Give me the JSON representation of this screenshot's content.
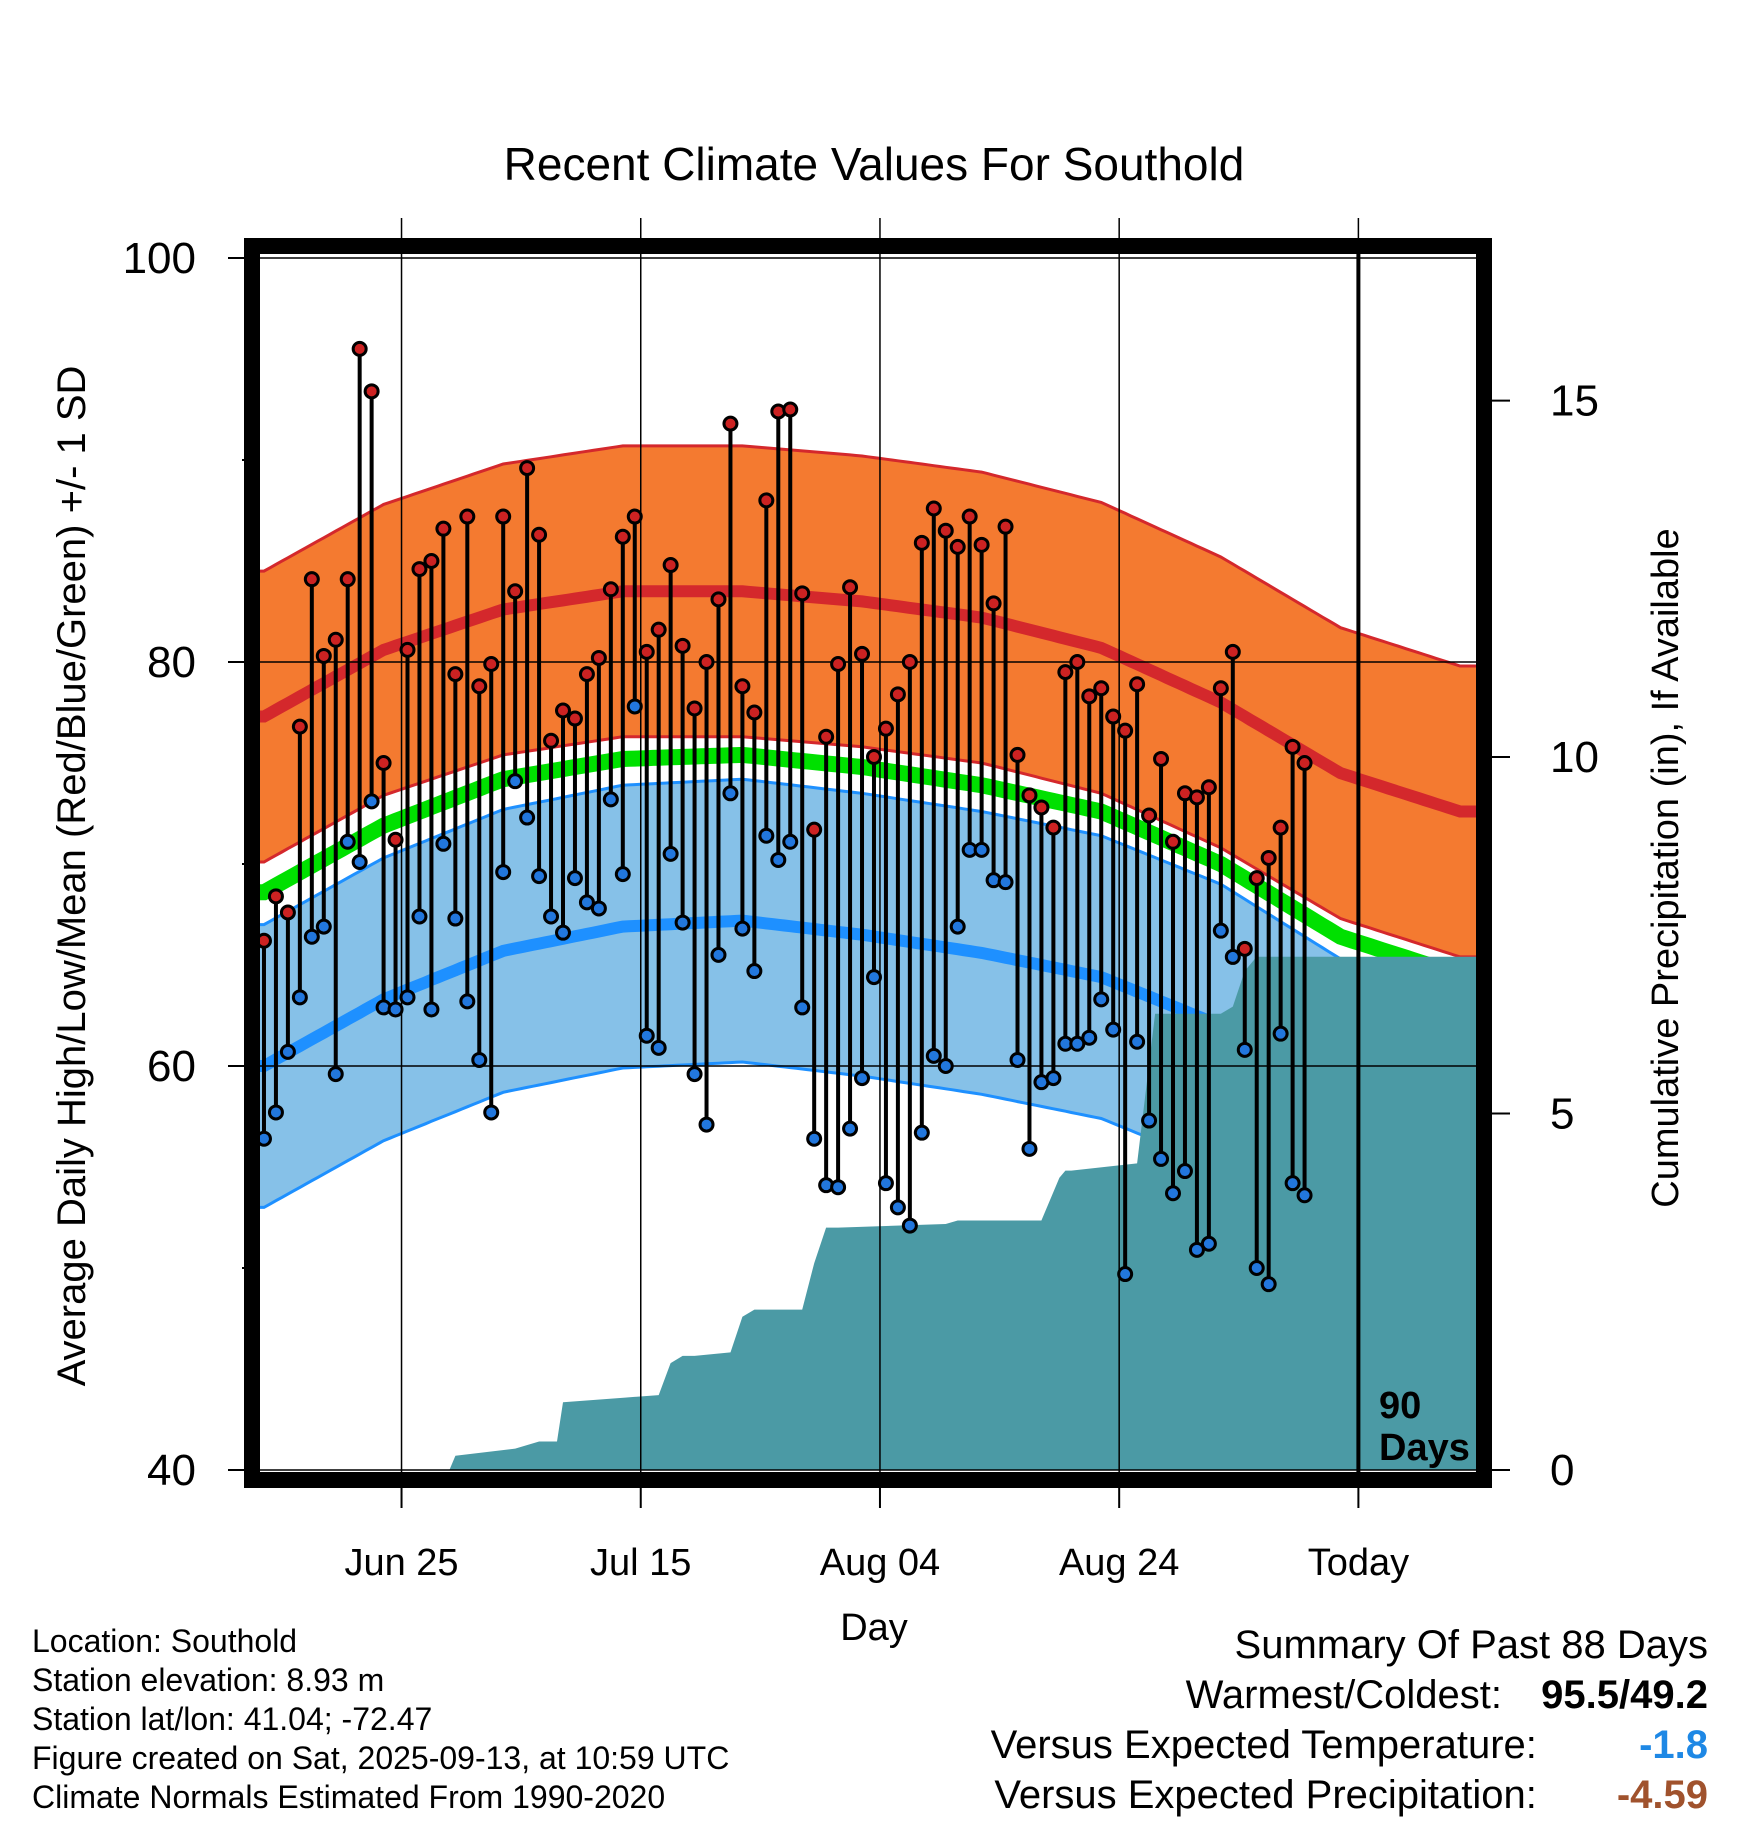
{
  "chart_data": {
    "type": "line",
    "title": "Recent Climate Values For Southold",
    "xlabel": "Day",
    "ylabel": "Average Daily High/Low/Mean (Red/Blue/Green) +/- 1 SD",
    "y2label": "Cumulative Precipitation (in), If Available",
    "ylim": [
      40,
      100
    ],
    "y_ticks": [
      "40",
      "60",
      "80",
      "100"
    ],
    "y2lim": [
      0,
      17
    ],
    "y2_ticks": [
      "0",
      "5",
      "10",
      "15"
    ],
    "xlim": [
      -0.5,
      101.5
    ],
    "x_ticks": [
      {
        "day": 11.5,
        "label": "Jun 25"
      },
      {
        "day": 31.5,
        "label": "Jul 15"
      },
      {
        "day": 51.5,
        "label": "Aug 04"
      },
      {
        "day": 71.5,
        "label": "Aug 24"
      },
      {
        "day": 91.5,
        "label": "Today"
      }
    ],
    "today_marker": {
      "day": 91.5,
      "label_line1": "90",
      "label_line2": "Days"
    },
    "colors": {
      "high_band": "#f47a30",
      "high_line": "#d4282c",
      "low_band": "#86c1e8",
      "low_line": "#1e90ff",
      "mean_line": "#00e000",
      "precip": "#4b9aa5",
      "high_dot": "#cc2222",
      "low_dot": "#2277dd"
    },
    "normals": {
      "days": [
        0,
        10,
        20,
        30,
        40,
        50,
        60,
        70,
        80,
        90,
        100
      ],
      "high_mean": [
        77.3,
        80.6,
        82.6,
        83.5,
        83.5,
        83.0,
        82.2,
        80.7,
        78.0,
        74.5,
        72.6
      ],
      "high_sd": 7.2,
      "low_mean": [
        60.0,
        63.3,
        65.7,
        66.9,
        67.2,
        66.5,
        65.6,
        64.4,
        62.0,
        58.3,
        56.4
      ],
      "low_sd": 7.0,
      "mean": [
        68.6,
        71.9,
        74.2,
        75.2,
        75.4,
        74.8,
        73.9,
        72.6,
        70.0,
        66.4,
        64.5
      ]
    },
    "highs": [
      66.2,
      68.4,
      67.6,
      76.8,
      84.1,
      80.3,
      81.1,
      84.1,
      95.5,
      93.4,
      75.0,
      71.2,
      80.6,
      84.6,
      85.0,
      86.6,
      79.4,
      87.2,
      78.8,
      79.9,
      87.2,
      83.5,
      89.6,
      86.3,
      76.1,
      77.6,
      77.2,
      79.4,
      80.2,
      83.6,
      86.2,
      87.2,
      80.5,
      81.6,
      84.8,
      80.8,
      77.7,
      80.0,
      83.1,
      91.8,
      78.8,
      77.5,
      88.0,
      92.4,
      92.5,
      83.4,
      71.7,
      76.3,
      79.9,
      83.7,
      80.4,
      75.3,
      76.7,
      78.4,
      80.0,
      85.9,
      87.6,
      86.5,
      85.7,
      87.2,
      85.8,
      82.9,
      86.7,
      75.4,
      73.4,
      72.8,
      71.8,
      79.5,
      80.0,
      78.3,
      78.7,
      77.3,
      76.6,
      78.9,
      72.4,
      75.2,
      71.1,
      73.5,
      73.3,
      73.8,
      78.7,
      80.5,
      65.8,
      69.3,
      70.3,
      71.8,
      75.8,
      75.0
    ],
    "lows": [
      56.4,
      57.7,
      60.7,
      63.4,
      66.4,
      66.9,
      59.6,
      71.1,
      70.1,
      73.1,
      62.9,
      62.8,
      63.4,
      67.4,
      62.8,
      71.0,
      67.3,
      63.2,
      60.3,
      57.7,
      69.6,
      74.1,
      72.3,
      69.4,
      67.4,
      66.6,
      69.3,
      68.1,
      67.8,
      73.2,
      69.5,
      77.8,
      61.5,
      60.9,
      70.5,
      67.1,
      59.6,
      57.1,
      65.5,
      73.5,
      66.8,
      64.7,
      71.4,
      70.2,
      71.1,
      62.9,
      56.4,
      54.1,
      54.0,
      56.9,
      59.4,
      64.4,
      54.2,
      53.0,
      52.1,
      56.7,
      60.5,
      60.0,
      66.9,
      70.7,
      70.7,
      69.2,
      69.1,
      60.3,
      55.9,
      59.2,
      59.4,
      61.1,
      61.1,
      61.4,
      63.3,
      61.8,
      49.7,
      61.2,
      57.3,
      55.4,
      53.7,
      54.8,
      50.9,
      51.2,
      66.7,
      65.4,
      60.8,
      50.0,
      49.2,
      61.6,
      54.2,
      53.6
    ],
    "precip_cumulative": {
      "days": [
        0,
        15.5,
        16,
        21,
        23,
        24.5,
        25,
        33,
        34,
        35,
        36,
        39,
        40,
        41,
        42,
        45,
        46,
        47,
        48,
        57,
        58,
        65,
        66,
        66.5,
        67,
        67.5,
        73,
        74.5,
        80,
        81,
        82,
        83,
        84,
        101.5
      ],
      "values": [
        0,
        0,
        0.2,
        0.3,
        0.4,
        0.4,
        0.95,
        1.05,
        1.5,
        1.6,
        1.6,
        1.65,
        2.15,
        2.25,
        2.25,
        2.25,
        2.9,
        3.4,
        3.4,
        3.45,
        3.5,
        3.5,
        3.9,
        4.1,
        4.2,
        4.2,
        4.3,
        6.4,
        6.4,
        6.5,
        7.0,
        7.2,
        7.2,
        7.2
      ]
    }
  },
  "meta": {
    "location": "Location: Southold",
    "elevation": "Station elevation: 8.93 m",
    "latlon": "Station lat/lon: 41.04; -72.47",
    "created": "Figure created on Sat, 2025-09-13, at 10:59 UTC",
    "normals": "Climate Normals Estimated From 1990-2020"
  },
  "summary": {
    "heading": "Summary Of Past 88 Days",
    "warm_cold_label": "Warmest/Coldest:",
    "warmest": "95.5",
    "separator": "/",
    "coldest": "49.2",
    "temp_label": "Versus Expected Temperature:",
    "temp_value": "-1.8",
    "temp_color": "#1e88e5",
    "precip_label": "Versus Expected Precipitation:",
    "precip_value": "-4.59",
    "precip_color": "#a0522d"
  }
}
